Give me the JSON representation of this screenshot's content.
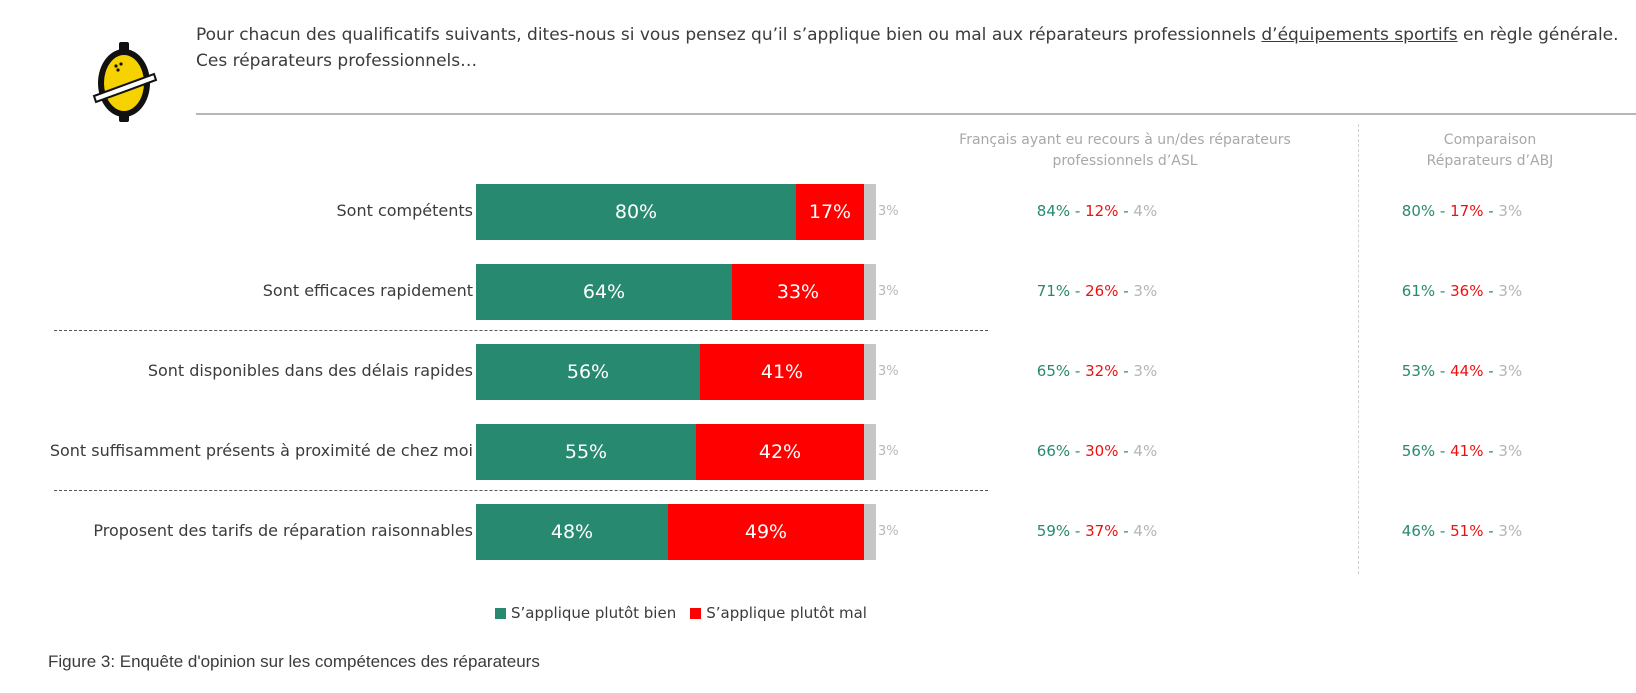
{
  "question": {
    "text_before": "Pour chacun des qualificatifs suivants, dites-nous si vous pensez qu’il s’applique bien ou mal aux réparateurs professionnels ",
    "text_underlined": "d’équipements sportifs",
    "text_after": " en règle générale.",
    "line2": "Ces réparateurs professionnels…"
  },
  "columns": {
    "asl_header": "Français ayant eu recours à un/des réparateurs professionnels d’ASL",
    "abj_header_line1": "Comparaison",
    "abj_header_line2": "Réparateurs d’ABJ"
  },
  "legend": {
    "good": "S’applique plutôt bien",
    "bad": "S’applique plutôt mal"
  },
  "caption": "Figure 3: Enquête d'opinion sur les compétences des réparateurs",
  "colors": {
    "good": "#27896f",
    "bad": "#ff0000",
    "nsp": "#c6c6c6"
  },
  "chart_data": {
    "type": "bar",
    "orientation": "horizontal",
    "stacked": true,
    "categories": [
      "Sont compétents",
      "Sont efficaces rapidement",
      "Sont disponibles dans des délais rapides",
      "Sont suffisamment présents à proximité de chez moi",
      "Proposent des tarifs de réparation raisonnables"
    ],
    "series": [
      {
        "name": "S’applique plutôt bien",
        "values": [
          80,
          64,
          56,
          55,
          48
        ],
        "labels": [
          "80%",
          "64%",
          "56%",
          "55%",
          "48%"
        ]
      },
      {
        "name": "S’applique plutôt mal",
        "values": [
          17,
          33,
          41,
          42,
          49
        ],
        "labels": [
          "17%",
          "33%",
          "41%",
          "42%",
          "49%"
        ]
      },
      {
        "name": "",
        "values": [
          3,
          3,
          3,
          3,
          3
        ],
        "labels": [
          "3%",
          "3%",
          "3%",
          "3%",
          "3%"
        ]
      }
    ],
    "xlim": [
      0,
      100
    ],
    "legend_position": "bottom",
    "comparison_asl": [
      {
        "good": "84%",
        "bad": "12%",
        "nsp": "4%"
      },
      {
        "good": "71%",
        "bad": "26%",
        "nsp": "3%"
      },
      {
        "good": "65%",
        "bad": "32%",
        "nsp": "3%"
      },
      {
        "good": "66%",
        "bad": "30%",
        "nsp": "4%"
      },
      {
        "good": "59%",
        "bad": "37%",
        "nsp": "4%"
      }
    ],
    "comparison_abj": [
      {
        "good": "80%",
        "bad": "17%",
        "nsp": "3%"
      },
      {
        "good": "61%",
        "bad": "36%",
        "nsp": "3%"
      },
      {
        "good": "53%",
        "bad": "44%",
        "nsp": "3%"
      },
      {
        "good": "56%",
        "bad": "41%",
        "nsp": "3%"
      },
      {
        "good": "46%",
        "bad": "51%",
        "nsp": "3%"
      }
    ],
    "separator_lines": "dashed separators after rows 2 and 4"
  }
}
